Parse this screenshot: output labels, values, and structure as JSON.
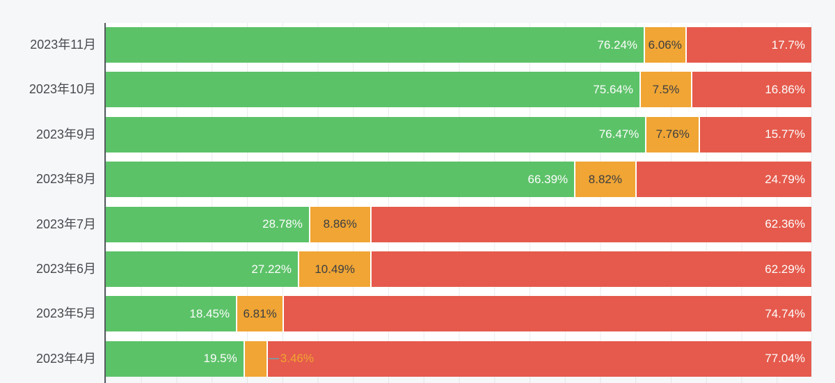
{
  "chart_data": {
    "type": "bar",
    "orientation": "horizontal",
    "stacked": true,
    "title": "",
    "xlabel": "",
    "ylabel": "",
    "xlim": [
      0,
      100
    ],
    "value_suffix": "%",
    "gridlines": "vertical, every 5%",
    "legend": "none (colors only: green, orange, red)",
    "categories": [
      "2023年11月",
      "2023年10月",
      "2023年9月",
      "2023年8月",
      "2023年7月",
      "2023年6月",
      "2023年5月",
      "2023年4月"
    ],
    "series": [
      {
        "name": "green",
        "color": "#5cc268",
        "values": [
          76.24,
          75.64,
          76.47,
          66.39,
          28.78,
          27.22,
          18.45,
          19.5
        ]
      },
      {
        "name": "orange",
        "color": "#f0a534",
        "values": [
          6.06,
          7.5,
          7.76,
          8.82,
          8.86,
          10.49,
          6.81,
          3.46
        ]
      },
      {
        "name": "red",
        "color": "#e55a4c",
        "values": [
          17.7,
          16.86,
          15.77,
          24.79,
          62.36,
          62.29,
          74.74,
          77.04
        ]
      }
    ]
  },
  "rows": [
    {
      "category": "2023年11月",
      "green": "76.24%",
      "orange": "6.06%",
      "red": "17.7%",
      "green_v": 76.24,
      "orange_v": 6.06,
      "red_v": 17.7
    },
    {
      "category": "2023年10月",
      "green": "75.64%",
      "orange": "7.5%",
      "red": "16.86%",
      "green_v": 75.64,
      "orange_v": 7.5,
      "red_v": 16.86
    },
    {
      "category": "2023年9月",
      "green": "76.47%",
      "orange": "7.76%",
      "red": "15.77%",
      "green_v": 76.47,
      "orange_v": 7.76,
      "red_v": 15.77
    },
    {
      "category": "2023年8月",
      "green": "66.39%",
      "orange": "8.82%",
      "red": "24.79%",
      "green_v": 66.39,
      "orange_v": 8.82,
      "red_v": 24.79
    },
    {
      "category": "2023年7月",
      "green": "28.78%",
      "orange": "8.86%",
      "red": "62.36%",
      "green_v": 28.78,
      "orange_v": 8.86,
      "red_v": 62.36
    },
    {
      "category": "2023年6月",
      "green": "27.22%",
      "orange": "10.49%",
      "red": "62.29%",
      "green_v": 27.22,
      "orange_v": 10.49,
      "red_v": 62.29
    },
    {
      "category": "2023年5月",
      "green": "18.45%",
      "orange": "6.81%",
      "red": "74.74%",
      "green_v": 18.45,
      "orange_v": 6.81,
      "red_v": 74.74
    },
    {
      "category": "2023年4月",
      "green": "19.5%",
      "orange": "3.46%",
      "red": "77.04%",
      "green_v": 19.5,
      "orange_v": 3.46,
      "red_v": 77.04
    }
  ],
  "colors": {
    "page_background": "#f6f7f8",
    "plot_background": "#ffffff",
    "gridline": "#e9ebed",
    "axis_line": "#565a5f",
    "category_label": "#46494e",
    "green_segment": "#5cc268",
    "orange_segment": "#f0a534",
    "red_segment": "#e55a4c",
    "label_on_green_red": "#fdfdfd",
    "label_on_orange": "#3b3e42",
    "callout_text": "#f0a534",
    "leader_line": "#8b9399"
  }
}
